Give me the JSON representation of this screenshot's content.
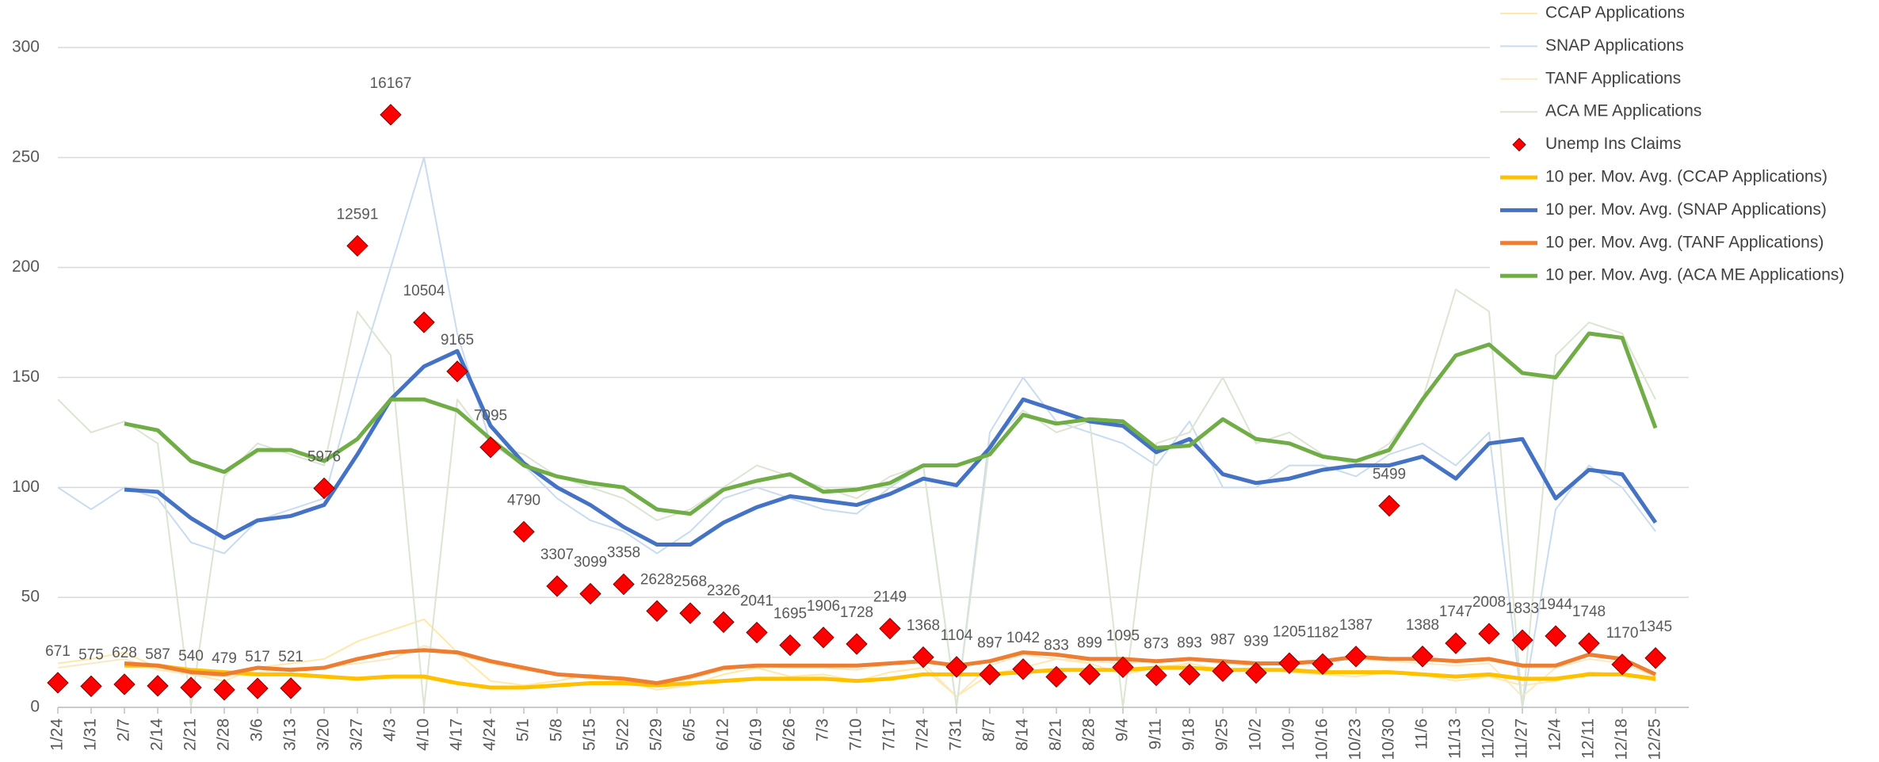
{
  "chart_data": {
    "type": "line",
    "categories": [
      "1/24",
      "1/31",
      "2/7",
      "2/14",
      "2/21",
      "2/28",
      "3/6",
      "3/13",
      "3/20",
      "3/27",
      "4/3",
      "4/10",
      "4/17",
      "4/24",
      "5/1",
      "5/8",
      "5/15",
      "5/22",
      "5/29",
      "6/5",
      "6/12",
      "6/19",
      "6/26",
      "7/3",
      "7/10",
      "7/17",
      "7/24",
      "7/31",
      "8/7",
      "8/14",
      "8/21",
      "8/28",
      "9/4",
      "9/11",
      "9/18",
      "9/25",
      "10/2",
      "10/9",
      "10/16",
      "10/23",
      "10/30",
      "11/6",
      "11/13",
      "11/20",
      "11/27",
      "12/4",
      "12/11",
      "12/18",
      "12/25"
    ],
    "ylim": [
      0,
      300
    ],
    "yticks": [
      0,
      50,
      100,
      150,
      200,
      250,
      300
    ],
    "y2lim": [
      0,
      18000
    ],
    "grid": true,
    "legend": "top-right",
    "series": [
      {
        "name": "CCAP Applications",
        "type": "line",
        "color": "#ffe8a8",
        "line_width": 2,
        "values": [
          20,
          22,
          25,
          18,
          15,
          12,
          18,
          20,
          22,
          30,
          35,
          40,
          25,
          12,
          10,
          12,
          15,
          12,
          8,
          10,
          15,
          18,
          14,
          15,
          12,
          16,
          18,
          5,
          15,
          18,
          22,
          20,
          15,
          18,
          20,
          17,
          18,
          16,
          15,
          14,
          16,
          15,
          12,
          14,
          10,
          12,
          16,
          15,
          12
        ]
      },
      {
        "name": "SNAP Applications",
        "type": "line",
        "color": "#c9dcef",
        "line_width": 2,
        "values": [
          100,
          90,
          100,
          95,
          75,
          70,
          85,
          90,
          95,
          150,
          200,
          250,
          170,
          120,
          110,
          95,
          85,
          80,
          70,
          80,
          95,
          100,
          95,
          90,
          88,
          100,
          110,
          0,
          125,
          150,
          130,
          125,
          120,
          110,
          130,
          100,
          100,
          110,
          110,
          105,
          115,
          120,
          110,
          125,
          0,
          90,
          110,
          100,
          80
        ]
      },
      {
        "name": "TANF Applications",
        "type": "line",
        "color": "#fbe9c2",
        "line_width": 2,
        "values": [
          18,
          20,
          22,
          17,
          15,
          14,
          16,
          18,
          18,
          20,
          22,
          28,
          24,
          20,
          17,
          15,
          13,
          12,
          10,
          13,
          17,
          19,
          18,
          18,
          17,
          20,
          20,
          5,
          19,
          24,
          22,
          21,
          20,
          21,
          22,
          20,
          19,
          20,
          21,
          22,
          21,
          20,
          19,
          20,
          5,
          18,
          22,
          20,
          14
        ]
      },
      {
        "name": "ACA ME Applications",
        "type": "line",
        "color": "#dbe5d2",
        "line_width": 2,
        "values": [
          140,
          125,
          130,
          120,
          0,
          105,
          120,
          115,
          110,
          180,
          160,
          0,
          140,
          120,
          115,
          105,
          100,
          95,
          85,
          90,
          100,
          110,
          105,
          100,
          95,
          105,
          110,
          0,
          120,
          135,
          125,
          130,
          0,
          120,
          125,
          150,
          120,
          125,
          115,
          110,
          120,
          140,
          190,
          180,
          0,
          160,
          175,
          170,
          140
        ]
      },
      {
        "name": "Unemp Ins Claims",
        "type": "scatter",
        "axis": "y2",
        "color": "#ff0000",
        "data_labels": true,
        "values": [
          671,
          575,
          628,
          587,
          540,
          479,
          517,
          521,
          5976,
          12591,
          16167,
          10504,
          9165,
          7095,
          4790,
          3307,
          3099,
          3358,
          2628,
          2568,
          2326,
          2041,
          1695,
          1906,
          1728,
          2149,
          1368,
          1104,
          897,
          1042,
          833,
          899,
          1095,
          873,
          893,
          987,
          939,
          1205,
          1182,
          1387,
          5499,
          1388,
          1747,
          2008,
          1833,
          1944,
          1748,
          1170,
          1345
        ]
      },
      {
        "name": "10 per. Mov. Avg. (CCAP Applications)",
        "type": "line",
        "color": "#ffc000",
        "line_width": 5,
        "values": [
          null,
          null,
          19,
          19,
          17,
          16,
          15,
          15,
          14,
          13,
          14,
          14,
          11,
          9,
          9,
          10,
          11,
          11,
          10,
          11,
          12,
          13,
          13,
          13,
          12,
          13,
          15,
          15,
          15,
          16,
          17,
          17,
          17,
          18,
          18,
          17,
          17,
          17,
          16,
          16,
          16,
          15,
          14,
          15,
          13,
          13,
          15,
          15,
          13
        ]
      },
      {
        "name": "10 per. Mov. Avg. (SNAP Applications)",
        "type": "line",
        "color": "#4472c4",
        "line_width": 5,
        "values": [
          null,
          null,
          99,
          98,
          86,
          77,
          85,
          87,
          92,
          115,
          140,
          155,
          162,
          128,
          111,
          100,
          92,
          82,
          74,
          74,
          84,
          91,
          96,
          94,
          92,
          97,
          104,
          101,
          118,
          140,
          135,
          130,
          128,
          116,
          122,
          106,
          102,
          104,
          108,
          110,
          110,
          114,
          104,
          120,
          122,
          95,
          108,
          106,
          84
        ]
      },
      {
        "name": "10 per. Mov. Avg. (TANF Applications)",
        "type": "line",
        "color": "#ed7d31",
        "line_width": 5,
        "values": [
          null,
          null,
          20,
          19,
          16,
          15,
          18,
          17,
          18,
          22,
          25,
          26,
          25,
          21,
          18,
          15,
          14,
          13,
          11,
          14,
          18,
          19,
          19,
          19,
          19,
          20,
          21,
          19,
          21,
          25,
          24,
          22,
          22,
          21,
          22,
          21,
          20,
          20,
          21,
          23,
          22,
          22,
          21,
          22,
          19,
          19,
          24,
          22,
          15
        ]
      },
      {
        "name": "10 per. Mov. Avg. (ACA ME Applications)",
        "type": "line",
        "color": "#70ad47",
        "line_width": 5,
        "values": [
          null,
          null,
          129,
          126,
          112,
          107,
          117,
          117,
          112,
          122,
          140,
          140,
          135,
          122,
          110,
          105,
          102,
          100,
          90,
          88,
          99,
          103,
          106,
          98,
          99,
          102,
          110,
          110,
          115,
          133,
          129,
          131,
          130,
          118,
          119,
          131,
          122,
          120,
          114,
          112,
          117,
          140,
          160,
          165,
          152,
          150,
          170,
          168,
          127
        ]
      }
    ]
  }
}
